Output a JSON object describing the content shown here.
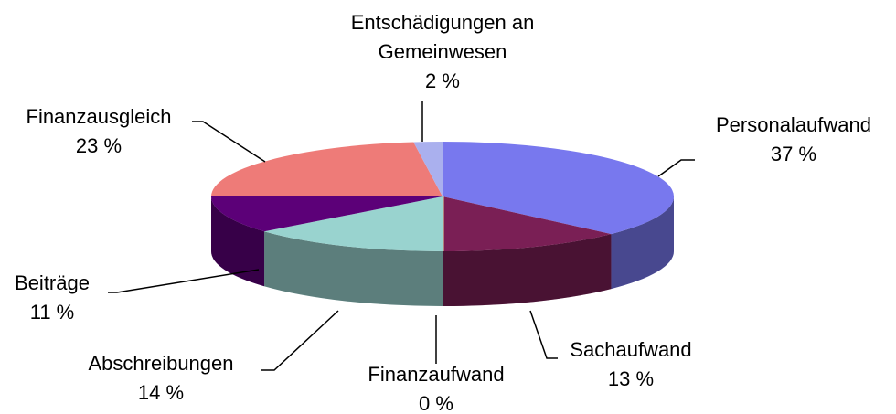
{
  "chart_data": {
    "type": "pie",
    "categories": [
      "Personalaufwand",
      "Sachaufwand",
      "Finanzaufwand",
      "Abschreibungen",
      "Beiträge",
      "Finanzausgleich",
      "Entschädigungen an Gemeinwesen"
    ],
    "values": [
      37,
      13,
      0,
      14,
      11,
      23,
      2
    ],
    "value_labels": [
      "37 %",
      "13 %",
      "0 %",
      "14 %",
      "11 %",
      "23 %",
      "2 %"
    ],
    "colors": [
      "#7878ee",
      "#7a1f55",
      "#ffffc0",
      "#99d3cf",
      "#5c0078",
      "#ee7b78",
      "#aab0ee"
    ]
  }
}
